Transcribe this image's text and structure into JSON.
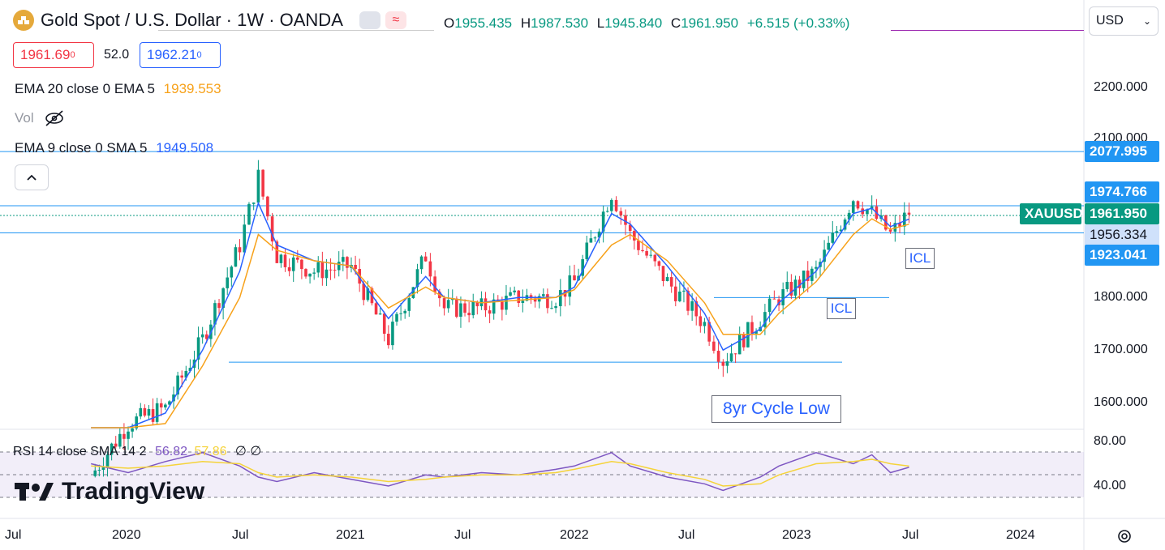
{
  "header": {
    "title": "Gold Spot / U.S. Dollar · 1W · OANDA",
    "ohlc": {
      "o_label": "O",
      "o": "1955.435",
      "h_label": "H",
      "h": "1987.530",
      "l_label": "L",
      "l": "1945.840",
      "c_label": "C",
      "c": "1961.950",
      "change": "+6.515 (+0.33%)"
    },
    "bid": "1961.69",
    "bid_sup": "0",
    "spread": "52.0",
    "ask": "1962.21",
    "ask_sup": "0",
    "currency": "USD"
  },
  "indicators": {
    "ema20_label": "EMA 20 close 0 EMA 5",
    "ema20_value": "1939.553",
    "vol_label": "Vol",
    "ema9_label": "EMA 9 close 0 SMA 5",
    "ema9_value": "1949.508",
    "rsi_label": "RSI 14 close SMA 14 2",
    "rsi_value": "56.82",
    "rsi_sma_value": "57.86",
    "rsi_extra": "∅ ∅"
  },
  "price_axis": {
    "ticks": [
      "2200.000",
      "2100.000",
      "1800.000",
      "1700.000",
      "1600.000"
    ],
    "tags": {
      "resistance": "2077.995",
      "level_a": "1974.766",
      "symbol": "XAUUSD",
      "last": "1961.950",
      "level_b": "1956.334",
      "level_c": "1923.041"
    }
  },
  "rsi_axis": {
    "ticks": [
      "80.00",
      "40.00"
    ]
  },
  "time_axis": [
    "Jul",
    "2020",
    "Jul",
    "2021",
    "Jul",
    "2022",
    "Jul",
    "2023",
    "Jul",
    "2024"
  ],
  "annotations": {
    "icl_1": "ICL",
    "icl_2": "ICL",
    "cycle_low": "8yr Cycle Low"
  },
  "branding": {
    "logo_text": "TradingView"
  },
  "colors": {
    "up": "#089981",
    "down": "#f23645",
    "ema_fast": "#2962ff",
    "ema_slow": "#f7a21b",
    "rsi": "#7e57c2",
    "rsi_sma": "#f5d33a",
    "lines": "#2196f3"
  },
  "chart_data": {
    "type": "candlestick",
    "x_range": [
      "2019-06",
      "2024-06"
    ],
    "ylim": [
      1560,
      2250
    ],
    "x": [
      "2019-11",
      "2020-01",
      "2020-03",
      "2020-05",
      "2020-07",
      "2020-08",
      "2020-09",
      "2020-11",
      "2021-01",
      "2021-03",
      "2021-05",
      "2021-06",
      "2021-08",
      "2021-10",
      "2021-12",
      "2022-01",
      "2022-03",
      "2022-04",
      "2022-06",
      "2022-08",
      "2022-09",
      "2022-11",
      "2022-12",
      "2023-02",
      "2023-04",
      "2023-05",
      "2023-06",
      "2023-07"
    ],
    "close": [
      1460,
      1560,
      1590,
      1720,
      1900,
      2030,
      1880,
      1850,
      1860,
      1720,
      1880,
      1780,
      1780,
      1800,
      1800,
      1830,
      2000,
      1920,
      1830,
      1750,
      1680,
      1760,
      1800,
      1850,
      1990,
      1960,
      1920,
      1962
    ],
    "ema_fast": [
      1450,
      1540,
      1580,
      1700,
      1850,
      1980,
      1900,
      1870,
      1860,
      1760,
      1840,
      1800,
      1790,
      1800,
      1800,
      1820,
      1960,
      1940,
      1860,
      1770,
      1700,
      1740,
      1790,
      1850,
      1960,
      1970,
      1935,
      1949.5
    ],
    "ema_slow": [
      1440,
      1510,
      1560,
      1670,
      1800,
      1920,
      1890,
      1870,
      1860,
      1780,
      1820,
      1800,
      1790,
      1795,
      1800,
      1815,
      1900,
      1920,
      1870,
      1790,
      1730,
      1730,
      1770,
      1830,
      1920,
      1950,
      1930,
      1939.6
    ],
    "horizontal_levels": [
      2077.995,
      1974.766,
      1956.334,
      1923.041,
      1800,
      1677
    ],
    "rsi": {
      "ylim": [
        30,
        85
      ],
      "values": [
        60,
        52,
        62,
        70,
        58,
        48,
        44,
        52,
        46,
        40,
        50,
        48,
        52,
        50,
        55,
        58,
        70,
        58,
        48,
        42,
        36,
        48,
        58,
        70,
        60,
        68,
        52,
        56.82
      ],
      "sma": [
        58,
        56,
        58,
        62,
        60,
        52,
        48,
        50,
        48,
        44,
        46,
        48,
        50,
        50,
        52,
        55,
        62,
        60,
        52,
        46,
        40,
        42,
        50,
        60,
        62,
        64,
        60,
        57.86
      ]
    }
  }
}
